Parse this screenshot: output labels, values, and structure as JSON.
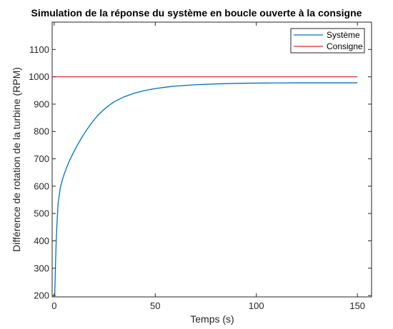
{
  "chart_data": {
    "type": "line",
    "title": "Simulation de la réponse du système en boucle ouverte à la consigne",
    "xlabel": "Temps (s)",
    "ylabel": "Différence de rotation de la turbine (RPM)",
    "xlim": [
      -1,
      157
    ],
    "ylim": [
      195,
      1200
    ],
    "xticks": [
      0,
      50,
      100,
      150
    ],
    "yticks": [
      200,
      300,
      400,
      500,
      600,
      700,
      800,
      900,
      1000,
      1100
    ],
    "grid": false,
    "legend_position": "top-right",
    "series": [
      {
        "name": "Système",
        "color": "#0072bd",
        "x": [
          0,
          0.3,
          0.6,
          1,
          1.5,
          2,
          3,
          4,
          5,
          6,
          7,
          8,
          10,
          12,
          14,
          16,
          18,
          20,
          22,
          24,
          26,
          28,
          30,
          35,
          40,
          45,
          50,
          55,
          60,
          70,
          80,
          90,
          100,
          110,
          120,
          130,
          140,
          150
        ],
        "y": [
          200,
          205,
          300,
          400,
          480,
          540,
          593,
          622,
          645,
          665,
          683,
          700,
          730,
          757,
          782,
          805,
          826,
          845,
          862,
          876,
          889,
          900,
          910,
          928,
          941,
          950,
          957,
          962,
          966,
          971,
          974,
          976,
          977,
          977.5,
          978,
          978,
          978,
          978
        ]
      },
      {
        "name": "Consigne",
        "color": "#e1262b",
        "x": [
          0,
          150
        ],
        "y": [
          1000,
          1000
        ]
      }
    ]
  }
}
